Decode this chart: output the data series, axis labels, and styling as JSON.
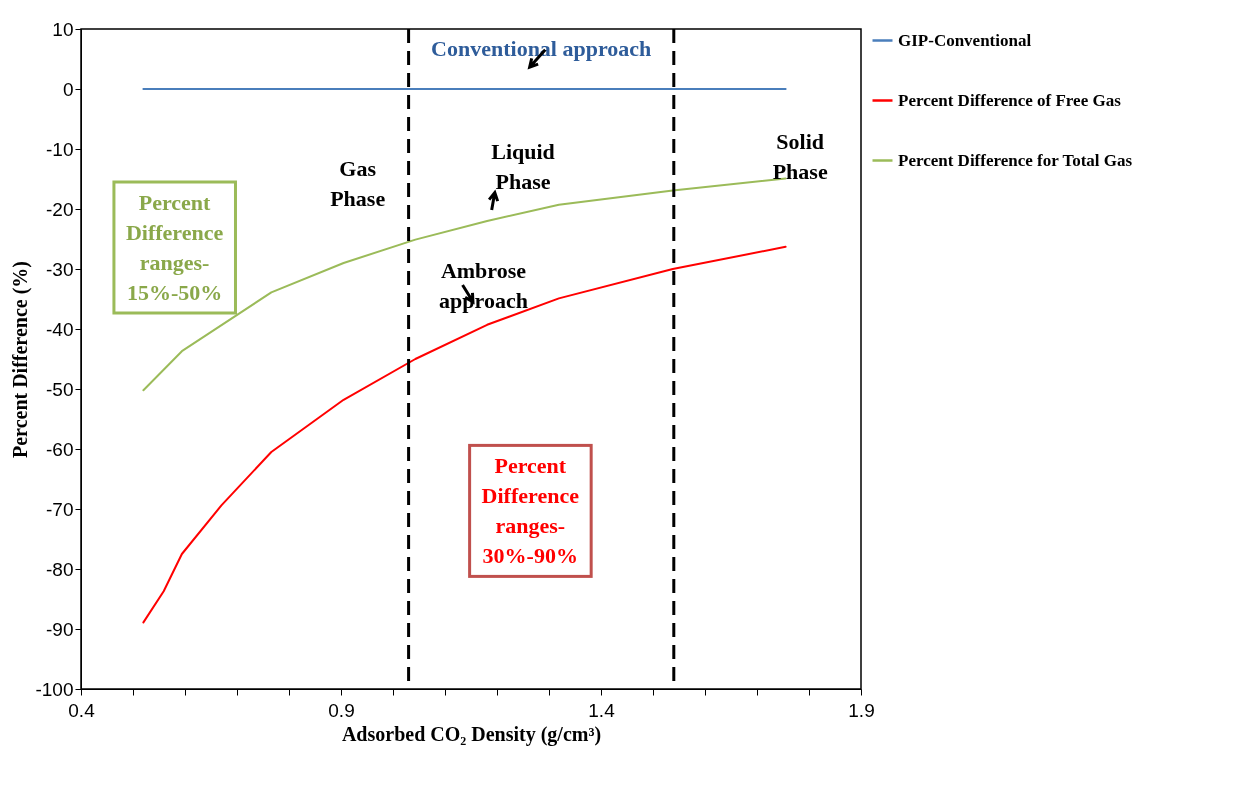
{
  "chart_data": {
    "type": "line",
    "xlabel": "Adsorbed CO₂ Density (g/cm³)",
    "ylabel": "Percent Difference (%)",
    "xlim": [
      0.4,
      1.9
    ],
    "xticks": [
      0.4,
      {
        "value": 0.5,
        "label": null
      },
      {
        "value": 0.6,
        "label": null
      },
      {
        "value": 0.7,
        "label": null
      },
      {
        "value": 0.8,
        "label": null
      },
      0.9,
      {
        "value": 1.0,
        "label": null
      },
      {
        "value": 1.1,
        "label": null
      },
      {
        "value": 1.2,
        "label": null
      },
      {
        "value": 1.3,
        "label": null
      },
      1.4,
      {
        "value": 1.5,
        "label": null
      },
      {
        "value": 1.6,
        "label": null
      },
      {
        "value": 1.7,
        "label": null
      },
      {
        "value": 1.8,
        "label": null
      },
      1.9
    ],
    "ylim": [
      -100,
      10
    ],
    "yticks": [
      -100,
      -90,
      -80,
      -70,
      -60,
      -50,
      -40,
      -30,
      -20,
      -10,
      0,
      10
    ],
    "grid": false,
    "legend": "right",
    "marker": "none",
    "line_style": "solid",
    "series": [
      {
        "name": "GIP-Conventional",
        "color": "#4a7ebb",
        "x": [
          0.52,
          1.755
        ],
        "values": [
          0,
          0
        ]
      },
      {
        "name": "Percent Difference of Free Gas",
        "color": "#ff0000",
        "x": [
          0.52,
          0.559,
          0.594,
          0.67,
          0.766,
          0.905,
          1.043,
          1.181,
          1.319,
          1.538,
          1.755
        ],
        "values": [
          -88.9,
          -83.7,
          -77.5,
          -69.4,
          -60.5,
          -51.8,
          -45,
          -39.3,
          -34.9,
          -30,
          -26.3
        ]
      },
      {
        "name": "Percent Difference for Total Gas",
        "color": "#9bbb59",
        "x": [
          0.52,
          0.594,
          0.766,
          0.905,
          1.043,
          1.181,
          1.319,
          1.538,
          1.755
        ],
        "values": [
          -50.2,
          -43.7,
          -33.9,
          -29,
          -25.1,
          -22,
          -19.3,
          -16.9,
          -14.9
        ]
      }
    ],
    "ref_lines": [
      {
        "axis": "x",
        "value": 1.03,
        "color": "#000000",
        "line_style": "dashed"
      },
      {
        "axis": "x",
        "value": 1.54,
        "color": "#000000",
        "line_style": "dashed"
      }
    ],
    "annotations": [
      "Conventional approach",
      "Gas Phase",
      "Liquid Phase",
      "Solid Phase",
      "Ambrose approach",
      "Percent Difference ranges- 15%-50%",
      "Percent Difference ranges- 30%-90%"
    ]
  }
}
